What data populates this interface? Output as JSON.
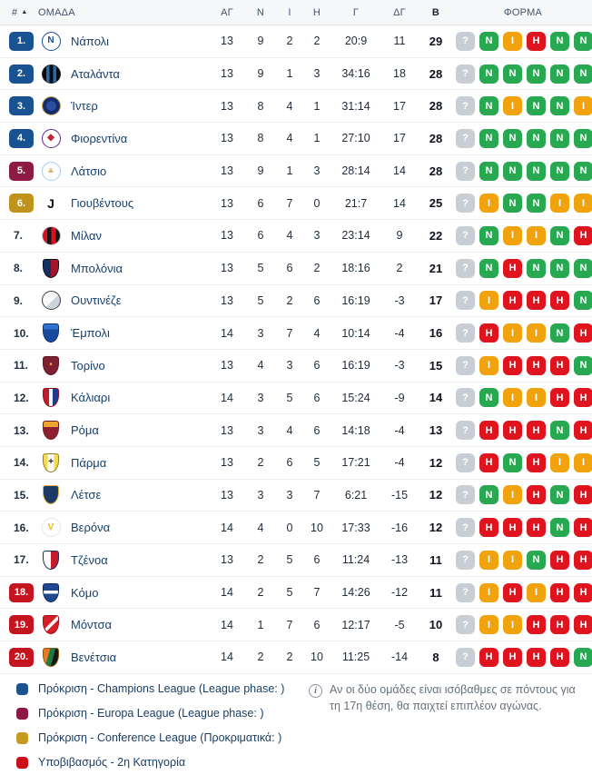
{
  "header": {
    "rank": "#",
    "sort_icon": "▲",
    "team": "ΟΜΑΔΑ",
    "played": "ΑΓ",
    "wins": "Ν",
    "draws": "Ι",
    "losses": "Η",
    "goals": "Γ",
    "diff": "ΔΓ",
    "points": "Β",
    "form": "ΦΟΡΜΑ"
  },
  "colors": {
    "badge": {
      "cl": "#195290",
      "el": "#8c1c44",
      "ecl": "#c0931d",
      "rel": "#c41420"
    },
    "form": {
      "?": "#c9ced4",
      "Ν": "#27a851",
      "Ι": "#f0a30d",
      "Η": "#df141f"
    }
  },
  "rows": [
    {
      "pos": "1.",
      "zone": "cl",
      "team": "Νάπολι",
      "logo": {
        "name": "napoli-logo",
        "shape": "circle",
        "bg": "#ffffff",
        "border": "#1b4e8c",
        "letter": "N",
        "fg": "#1b4e8c"
      },
      "played": "13",
      "wins": "9",
      "draws": "2",
      "losses": "2",
      "goals": "20:9",
      "diff": "11",
      "points": "29",
      "form": [
        "?",
        "Ν",
        "Ι",
        "Η",
        "Ν",
        "Ν"
      ]
    },
    {
      "pos": "2.",
      "zone": "cl",
      "team": "Αταλάντα",
      "logo": {
        "name": "atalanta-logo",
        "shape": "circle",
        "bg": "linear-gradient(90deg,#0b0b0b 0 20%,#2868b0 20% 40%,#0b0b0b 40% 60%,#2868b0 60% 80%,#0b0b0b 80%)",
        "border": "#22262b",
        "letter": "",
        "fg": "#fff"
      },
      "played": "13",
      "wins": "9",
      "draws": "1",
      "losses": "3",
      "goals": "34:16",
      "diff": "18",
      "points": "28",
      "form": [
        "?",
        "Ν",
        "Ν",
        "Ν",
        "Ν",
        "Ν"
      ]
    },
    {
      "pos": "3.",
      "zone": "cl",
      "team": "Ίντερ",
      "logo": {
        "name": "inter-logo",
        "shape": "circle",
        "bg": "radial-gradient(circle,#2b4f9e 0 40%,#152d6e 40%)",
        "border": "#c9ab54",
        "letter": "",
        "fg": "#fff"
      },
      "played": "13",
      "wins": "8",
      "draws": "4",
      "losses": "1",
      "goals": "31:14",
      "diff": "17",
      "points": "28",
      "form": [
        "?",
        "Ν",
        "Ι",
        "Ν",
        "Ν",
        "Ι"
      ]
    },
    {
      "pos": "4.",
      "zone": "cl",
      "team": "Φιορεντίνα",
      "logo": {
        "name": "fiorentina-logo",
        "shape": "circle",
        "bg": "#ffffff",
        "border": "#5b2d8e",
        "letter": "◆",
        "fg": "#c22433"
      },
      "played": "13",
      "wins": "8",
      "draws": "4",
      "losses": "1",
      "goals": "27:10",
      "diff": "17",
      "points": "28",
      "form": [
        "?",
        "Ν",
        "Ν",
        "Ν",
        "Ν",
        "Ν"
      ]
    },
    {
      "pos": "5.",
      "zone": "el",
      "team": "Λάτσιο",
      "logo": {
        "name": "lazio-logo",
        "shape": "circle",
        "bg": "#fdfdfd",
        "border": "#a9cdea",
        "letter": "▲",
        "fg": "#d9b96a"
      },
      "played": "13",
      "wins": "9",
      "draws": "1",
      "losses": "3",
      "goals": "28:14",
      "diff": "14",
      "points": "28",
      "form": [
        "?",
        "Ν",
        "Ν",
        "Ν",
        "Ν",
        "Ν"
      ]
    },
    {
      "pos": "6.",
      "zone": "ecl",
      "team": "Γιουβέντους",
      "logo": {
        "name": "juventus-logo",
        "shape": "circle",
        "bg": "#ffffff",
        "border": "",
        "letter": "J",
        "fg": "#121212"
      },
      "played": "13",
      "wins": "6",
      "draws": "7",
      "losses": "0",
      "goals": "21:7",
      "diff": "14",
      "points": "25",
      "form": [
        "?",
        "Ι",
        "Ν",
        "Ν",
        "Ι",
        "Ι"
      ]
    },
    {
      "pos": "7.",
      "zone": "none",
      "team": "Μίλαν",
      "logo": {
        "name": "milan-logo",
        "shape": "circle",
        "bg": "linear-gradient(90deg,#d5121e 0 25%,#141414 25% 50%,#d5121e 50% 75%,#141414 75%)",
        "border": "#c5c9cf",
        "letter": "",
        "fg": "#fff"
      },
      "played": "13",
      "wins": "6",
      "draws": "4",
      "losses": "3",
      "goals": "23:14",
      "diff": "9",
      "points": "22",
      "form": [
        "?",
        "Ν",
        "Ι",
        "Ι",
        "Ν",
        "Η"
      ]
    },
    {
      "pos": "8.",
      "zone": "none",
      "team": "Μπολόνια",
      "logo": {
        "name": "bologna-logo",
        "shape": "shield",
        "bg": "linear-gradient(90deg,#15305f 0 50%,#a5142a 50%)",
        "border": "#101010",
        "letter": "",
        "fg": "#fff"
      },
      "played": "13",
      "wins": "5",
      "draws": "6",
      "losses": "2",
      "goals": "18:16",
      "diff": "2",
      "points": "21",
      "form": [
        "?",
        "Ν",
        "Η",
        "Ν",
        "Ν",
        "Ν"
      ]
    },
    {
      "pos": "9.",
      "zone": "none",
      "team": "Ουντινέζε",
      "logo": {
        "name": "udinese-logo",
        "shape": "circle",
        "bg": "linear-gradient(135deg,#fafafa 0 55%,#cfd4da 55%)",
        "border": "#3c3f44",
        "letter": "",
        "fg": "#444"
      },
      "played": "13",
      "wins": "5",
      "draws": "2",
      "losses": "6",
      "goals": "16:19",
      "diff": "-3",
      "points": "17",
      "form": [
        "?",
        "Ι",
        "Η",
        "Η",
        "Η",
        "Ν"
      ]
    },
    {
      "pos": "10.",
      "zone": "none",
      "team": "Έμπολι",
      "logo": {
        "name": "empoli-logo",
        "shape": "shield",
        "bg": "linear-gradient(180deg,#2f72cf 0 30%,#174a9e 30%)",
        "border": "#0f2f6b",
        "letter": "",
        "fg": "#fff"
      },
      "played": "14",
      "wins": "3",
      "draws": "7",
      "losses": "4",
      "goals": "10:14",
      "diff": "-4",
      "points": "16",
      "form": [
        "?",
        "Η",
        "Ι",
        "Ι",
        "Ν",
        "Η"
      ]
    },
    {
      "pos": "11.",
      "zone": "none",
      "team": "Τορίνο",
      "logo": {
        "name": "torino-logo",
        "shape": "shield",
        "bg": "#7e2033",
        "border": "#5c1625",
        "letter": "▪",
        "fg": "#d9a43c"
      },
      "played": "13",
      "wins": "4",
      "draws": "3",
      "losses": "6",
      "goals": "16:19",
      "diff": "-3",
      "points": "15",
      "form": [
        "?",
        "Ι",
        "Η",
        "Η",
        "Η",
        "Ν"
      ]
    },
    {
      "pos": "12.",
      "zone": "none",
      "team": "Κάλιαρι",
      "logo": {
        "name": "cagliari-logo",
        "shape": "shield",
        "bg": "linear-gradient(90deg,#c31b2c 0 38%,#f4f4f4 38% 62%,#1c3c8e 62%)",
        "border": "#8c1322",
        "letter": "",
        "fg": "#fff"
      },
      "played": "14",
      "wins": "3",
      "draws": "5",
      "losses": "6",
      "goals": "15:24",
      "diff": "-9",
      "points": "14",
      "form": [
        "?",
        "Ν",
        "Ι",
        "Ι",
        "Η",
        "Η"
      ]
    },
    {
      "pos": "13.",
      "zone": "none",
      "team": "Ρόμα",
      "logo": {
        "name": "roma-logo",
        "shape": "shield",
        "bg": "linear-gradient(180deg,#f2a52e 0 32%,#8e1f30 32%)",
        "border": "#701a28",
        "letter": "",
        "fg": "#fff"
      },
      "played": "13",
      "wins": "3",
      "draws": "4",
      "losses": "6",
      "goals": "14:18",
      "diff": "-4",
      "points": "13",
      "form": [
        "?",
        "Η",
        "Η",
        "Η",
        "Ν",
        "Η"
      ]
    },
    {
      "pos": "14.",
      "zone": "none",
      "team": "Πάρμα",
      "logo": {
        "name": "parma-logo",
        "shape": "shield",
        "bg": "linear-gradient(90deg,#f4dc4e 0 28%,#fbfbfb 28% 72%,#f4dc4e 72%)",
        "border": "#8f8326",
        "letter": "+",
        "fg": "#1c1c1c"
      },
      "played": "13",
      "wins": "2",
      "draws": "6",
      "losses": "5",
      "goals": "17:21",
      "diff": "-4",
      "points": "12",
      "form": [
        "?",
        "Η",
        "Ν",
        "Η",
        "Ι",
        "Ι"
      ]
    },
    {
      "pos": "15.",
      "zone": "none",
      "team": "Λέτσε",
      "logo": {
        "name": "lecce-logo",
        "shape": "shield",
        "bg": "#1d3a66",
        "border": "#d9b43c",
        "letter": "",
        "fg": "#f0c020"
      },
      "played": "13",
      "wins": "3",
      "draws": "3",
      "losses": "7",
      "goals": "6:21",
      "diff": "-15",
      "points": "12",
      "form": [
        "?",
        "Ν",
        "Ι",
        "Η",
        "Ν",
        "Η"
      ]
    },
    {
      "pos": "16.",
      "zone": "none",
      "team": "Βερόνα",
      "logo": {
        "name": "verona-logo",
        "shape": "circle",
        "bg": "#ffffff",
        "border": "#e4e7ea",
        "letter": "V",
        "fg": "#f2bc1d"
      },
      "played": "14",
      "wins": "4",
      "draws": "0",
      "losses": "10",
      "goals": "17:33",
      "diff": "-16",
      "points": "12",
      "form": [
        "?",
        "Η",
        "Η",
        "Η",
        "Ν",
        "Η"
      ]
    },
    {
      "pos": "17.",
      "zone": "none",
      "team": "Τζένοα",
      "logo": {
        "name": "genoa-logo",
        "shape": "shield",
        "bg": "linear-gradient(90deg,#fbfbfb 0 50%,#c41b2c 50%)",
        "border": "#1b2f5a",
        "letter": "",
        "fg": "#fff"
      },
      "played": "13",
      "wins": "2",
      "draws": "5",
      "losses": "6",
      "goals": "11:24",
      "diff": "-13",
      "points": "11",
      "form": [
        "?",
        "Ι",
        "Ι",
        "Ν",
        "Η",
        "Η"
      ]
    },
    {
      "pos": "18.",
      "zone": "rel",
      "team": "Κόμο",
      "logo": {
        "name": "como-logo",
        "shape": "shield",
        "bg": "linear-gradient(180deg,#20488e 0 36%,#f6f6f6 36% 56%,#20488e 56%)",
        "border": "#132f60",
        "letter": "",
        "fg": "#fff"
      },
      "played": "14",
      "wins": "2",
      "draws": "5",
      "losses": "7",
      "goals": "14:26",
      "diff": "-12",
      "points": "11",
      "form": [
        "?",
        "Ι",
        "Η",
        "Ι",
        "Η",
        "Η"
      ]
    },
    {
      "pos": "19.",
      "zone": "rel",
      "team": "Μόντσα",
      "logo": {
        "name": "monza-logo",
        "shape": "shield",
        "bg": "linear-gradient(135deg,#d61e28 0 44%,#f7f7f7 44% 58%,#d61e28 58%)",
        "border": "#9e1119",
        "letter": "",
        "fg": "#fff"
      },
      "played": "14",
      "wins": "1",
      "draws": "7",
      "losses": "6",
      "goals": "12:17",
      "diff": "-5",
      "points": "10",
      "form": [
        "?",
        "Ι",
        "Ι",
        "Η",
        "Η",
        "Η"
      ]
    },
    {
      "pos": "20.",
      "zone": "rel",
      "team": "Βενέτσια",
      "logo": {
        "name": "venezia-logo",
        "shape": "shield",
        "bg": "linear-gradient(105deg,#e87a22 0 34%,#1c7a45 34% 62%,#161616 62%)",
        "border": "#8a5a16",
        "letter": "",
        "fg": "#fff"
      },
      "played": "14",
      "wins": "2",
      "draws": "2",
      "losses": "10",
      "goals": "11:25",
      "diff": "-14",
      "points": "8",
      "form": [
        "?",
        "Η",
        "Η",
        "Η",
        "Η",
        "Ν"
      ]
    }
  ],
  "legend": [
    {
      "color": "#1b5391",
      "label": "Πρόκριση - Champions League (League phase: )"
    },
    {
      "color": "#8e1845",
      "label": "Πρόκριση - Europa League (League phase: )"
    },
    {
      "color": "#c6991f",
      "label": "Πρόκριση - Conference League (Προκριματικά: )"
    },
    {
      "color": "#cb0e16",
      "label": "Υποβιβασμός - 2η Κατηγορία"
    }
  ],
  "note": {
    "icon_letter": "i",
    "text": "Αν οι δύο ομάδες είναι ισόβαθμες σε πόντους για τη 17η θέση, θα παιχτεί επιπλέον αγώνας."
  }
}
